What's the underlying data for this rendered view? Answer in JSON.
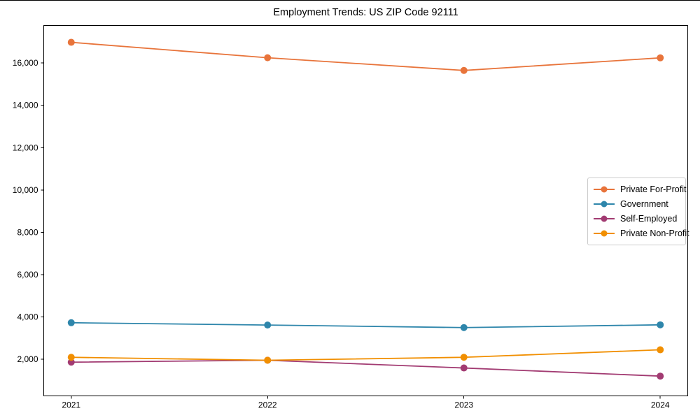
{
  "title": "Employment Trends: US ZIP Code 92111",
  "chart_data": {
    "type": "line",
    "title": "Employment Trends: US ZIP Code 92111",
    "x": [
      2021,
      2022,
      2023,
      2024
    ],
    "x_tick_labels": [
      "2021",
      "2022",
      "2023",
      "2024"
    ],
    "series": [
      {
        "name": "Private For-Profit",
        "color": "#E8743B",
        "values": [
          16980,
          16250,
          15650,
          16245
        ]
      },
      {
        "name": "Government",
        "color": "#2E86AB",
        "values": [
          3720,
          3610,
          3490,
          3620
        ]
      },
      {
        "name": "Self-Employed",
        "color": "#A23B72",
        "values": [
          1855,
          1945,
          1580,
          1195
        ]
      },
      {
        "name": "Private Non-Profit",
        "color": "#F18F01",
        "values": [
          2085,
          1945,
          2085,
          2440
        ]
      }
    ],
    "y_ticks": [
      2000,
      4000,
      6000,
      8000,
      10000,
      12000,
      14000,
      16000
    ],
    "y_tick_labels": [
      "2,000",
      "4,000",
      "6,000",
      "8,000",
      "10,000",
      "12,000",
      "14,000",
      "16,000"
    ],
    "xlim": [
      2020.86,
      2024.14
    ],
    "ylim": [
      260,
      17775
    ],
    "grid": false,
    "legend_position": "center-right",
    "axis_color": "#000000",
    "marker": "circle",
    "marker_radius": 5,
    "line_width": 1.8
  }
}
